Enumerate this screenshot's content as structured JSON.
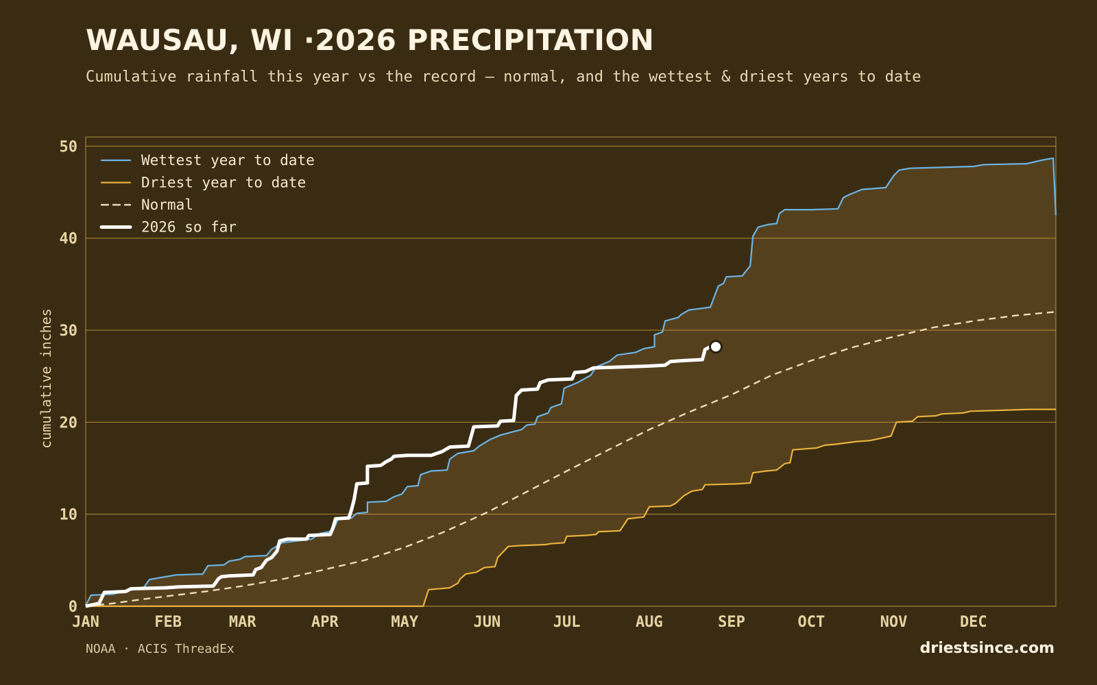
{
  "header": {
    "title": "WAUSAU, WI ·2026 PRECIPITATION",
    "subtitle": "Cumulative rainfall this year vs the record — normal, and the wettest & driest years to date"
  },
  "footer": {
    "source": "NOAA · ACIS ThreadEx",
    "brand": "driestsince.com"
  },
  "chart_data": {
    "type": "line",
    "title": "WAUSAU, WI ·2026 PRECIPITATION",
    "ylabel": "cumulative inches",
    "xlabel": "",
    "ylim": [
      0,
      51
    ],
    "xlim_days": [
      0,
      365
    ],
    "yticks": [
      0,
      10,
      20,
      30,
      40,
      50
    ],
    "months": [
      {
        "label": "JAN",
        "day": 0
      },
      {
        "label": "FEB",
        "day": 31
      },
      {
        "label": "MAR",
        "day": 59
      },
      {
        "label": "APR",
        "day": 90
      },
      {
        "label": "MAY",
        "day": 120
      },
      {
        "label": "JUN",
        "day": 151
      },
      {
        "label": "JUL",
        "day": 181
      },
      {
        "label": "AUG",
        "day": 212
      },
      {
        "label": "SEP",
        "day": 243
      },
      {
        "label": "OCT",
        "day": 273
      },
      {
        "label": "NOV",
        "day": 304
      },
      {
        "label": "DEC",
        "day": 334
      }
    ],
    "grid": true,
    "legend_position": "top-left",
    "colors": {
      "wettest": "#6cb4e4",
      "driest": "#e8b23c",
      "normal": "#ecdcb6",
      "current": "#ffffff",
      "band": "#56411f",
      "grid": "#c9a040",
      "axis_text": "#e6d3a3"
    },
    "series": [
      {
        "name": "Wettest year to date",
        "style": "solid",
        "points": [
          [
            0,
            0.1
          ],
          [
            2,
            1.2
          ],
          [
            10,
            1.3
          ],
          [
            14,
            1.6
          ],
          [
            18,
            1.8
          ],
          [
            22,
            2.1
          ],
          [
            24,
            2.9
          ],
          [
            30,
            3.2
          ],
          [
            34,
            3.4
          ],
          [
            44,
            3.5
          ],
          [
            46,
            4.4
          ],
          [
            52,
            4.5
          ],
          [
            54,
            4.9
          ],
          [
            58,
            5.1
          ],
          [
            60,
            5.4
          ],
          [
            68,
            5.5
          ],
          [
            70,
            6.2
          ],
          [
            74,
            6.9
          ],
          [
            85,
            7.3
          ],
          [
            88,
            7.9
          ],
          [
            93,
            8.2
          ],
          [
            95,
            9.5
          ],
          [
            100,
            9.6
          ],
          [
            102,
            10.1
          ],
          [
            106,
            10.2
          ],
          [
            106,
            11.3
          ],
          [
            113,
            11.4
          ],
          [
            116,
            11.9
          ],
          [
            119,
            12.2
          ],
          [
            121,
            13.0
          ],
          [
            125,
            13.1
          ],
          [
            126,
            14.3
          ],
          [
            130,
            14.7
          ],
          [
            136,
            14.8
          ],
          [
            137,
            16.0
          ],
          [
            140,
            16.6
          ],
          [
            146,
            16.9
          ],
          [
            148,
            17.4
          ],
          [
            152,
            18.1
          ],
          [
            156,
            18.6
          ],
          [
            160,
            18.9
          ],
          [
            164,
            19.2
          ],
          [
            166,
            19.7
          ],
          [
            169,
            19.8
          ],
          [
            170,
            20.6
          ],
          [
            174,
            21.0
          ],
          [
            175,
            21.6
          ],
          [
            179,
            22.0
          ],
          [
            180,
            23.7
          ],
          [
            185,
            24.3
          ],
          [
            190,
            25.1
          ],
          [
            192,
            26.0
          ],
          [
            197,
            26.6
          ],
          [
            200,
            27.3
          ],
          [
            207,
            27.6
          ],
          [
            210,
            28.0
          ],
          [
            214,
            28.2
          ],
          [
            214,
            29.5
          ],
          [
            217,
            29.8
          ],
          [
            218,
            31.0
          ],
          [
            223,
            31.4
          ],
          [
            224,
            31.7
          ],
          [
            227,
            32.2
          ],
          [
            235,
            32.5
          ],
          [
            238,
            34.8
          ],
          [
            240,
            35.1
          ],
          [
            241,
            35.8
          ],
          [
            247,
            35.9
          ],
          [
            250,
            37.0
          ],
          [
            251,
            40.2
          ],
          [
            253,
            41.2
          ],
          [
            257,
            41.5
          ],
          [
            260,
            41.6
          ],
          [
            261,
            42.7
          ],
          [
            263,
            43.1
          ],
          [
            273,
            43.1
          ],
          [
            283,
            43.2
          ],
          [
            285,
            44.4
          ],
          [
            287,
            44.7
          ],
          [
            292,
            45.3
          ],
          [
            301,
            45.5
          ],
          [
            304,
            46.8
          ],
          [
            306,
            47.4
          ],
          [
            310,
            47.6
          ],
          [
            334,
            47.8
          ],
          [
            338,
            48.0
          ],
          [
            354,
            48.1
          ],
          [
            360,
            48.5
          ],
          [
            364,
            48.7
          ],
          [
            365,
            42.5
          ]
        ]
      },
      {
        "name": "Driest year to date",
        "style": "solid",
        "points": [
          [
            0,
            0
          ],
          [
            127,
            0
          ],
          [
            129,
            1.8
          ],
          [
            137,
            2.0
          ],
          [
            140,
            2.5
          ],
          [
            141,
            3.0
          ],
          [
            143,
            3.5
          ],
          [
            147,
            3.7
          ],
          [
            150,
            4.2
          ],
          [
            154,
            4.3
          ],
          [
            155,
            5.3
          ],
          [
            157,
            5.9
          ],
          [
            159,
            6.5
          ],
          [
            164,
            6.6
          ],
          [
            173,
            6.7
          ],
          [
            175,
            6.8
          ],
          [
            180,
            6.9
          ],
          [
            181,
            7.6
          ],
          [
            188,
            7.7
          ],
          [
            192,
            7.8
          ],
          [
            193,
            8.1
          ],
          [
            201,
            8.2
          ],
          [
            204,
            9.5
          ],
          [
            210,
            9.7
          ],
          [
            212,
            10.8
          ],
          [
            220,
            10.9
          ],
          [
            222,
            11.2
          ],
          [
            225,
            12.0
          ],
          [
            228,
            12.5
          ],
          [
            232,
            12.7
          ],
          [
            233,
            13.2
          ],
          [
            245,
            13.3
          ],
          [
            250,
            13.4
          ],
          [
            251,
            14.5
          ],
          [
            256,
            14.7
          ],
          [
            260,
            14.8
          ],
          [
            263,
            15.5
          ],
          [
            265,
            15.6
          ],
          [
            266,
            17.0
          ],
          [
            275,
            17.2
          ],
          [
            278,
            17.5
          ],
          [
            282,
            17.6
          ],
          [
            290,
            17.9
          ],
          [
            295,
            18.0
          ],
          [
            300,
            18.3
          ],
          [
            303,
            18.5
          ],
          [
            305,
            20.0
          ],
          [
            311,
            20.1
          ],
          [
            313,
            20.6
          ],
          [
            320,
            20.7
          ],
          [
            322,
            20.9
          ],
          [
            330,
            21.0
          ],
          [
            333,
            21.2
          ],
          [
            345,
            21.3
          ],
          [
            355,
            21.4
          ],
          [
            365,
            21.4
          ]
        ]
      },
      {
        "name": "Normal",
        "style": "dashed",
        "points": [
          [
            0,
            0
          ],
          [
            10,
            0.3
          ],
          [
            20,
            0.7
          ],
          [
            31,
            1.1
          ],
          [
            45,
            1.6
          ],
          [
            59,
            2.2
          ],
          [
            75,
            3.0
          ],
          [
            90,
            4.0
          ],
          [
            105,
            5.0
          ],
          [
            120,
            6.4
          ],
          [
            135,
            8.1
          ],
          [
            151,
            10.2
          ],
          [
            165,
            12.3
          ],
          [
            181,
            14.7
          ],
          [
            196,
            16.9
          ],
          [
            212,
            19.2
          ],
          [
            227,
            21.1
          ],
          [
            243,
            23.0
          ],
          [
            258,
            25.1
          ],
          [
            273,
            26.7
          ],
          [
            288,
            28.1
          ],
          [
            304,
            29.3
          ],
          [
            319,
            30.3
          ],
          [
            334,
            31.0
          ],
          [
            350,
            31.6
          ],
          [
            365,
            32.0
          ]
        ]
      },
      {
        "name": "2026 so far",
        "style": "bold",
        "points": [
          [
            0,
            0
          ],
          [
            5,
            0.3
          ],
          [
            7,
            1.5
          ],
          [
            15,
            1.6
          ],
          [
            17,
            1.9
          ],
          [
            30,
            2.0
          ],
          [
            35,
            2.1
          ],
          [
            48,
            2.2
          ],
          [
            50,
            3.0
          ],
          [
            51,
            3.2
          ],
          [
            54,
            3.3
          ],
          [
            63,
            3.4
          ],
          [
            64,
            4.0
          ],
          [
            66,
            4.2
          ],
          [
            68,
            5.0
          ],
          [
            70,
            5.3
          ],
          [
            72,
            6.0
          ],
          [
            73,
            7.1
          ],
          [
            76,
            7.3
          ],
          [
            83,
            7.3
          ],
          [
            84,
            7.7
          ],
          [
            92,
            7.8
          ],
          [
            93,
            8.5
          ],
          [
            94,
            9.5
          ],
          [
            99,
            9.6
          ],
          [
            100,
            10.5
          ],
          [
            101,
            11.6
          ],
          [
            102,
            13.3
          ],
          [
            106,
            13.4
          ],
          [
            106,
            15.2
          ],
          [
            111,
            15.3
          ],
          [
            113,
            15.7
          ],
          [
            115,
            16.0
          ],
          [
            116,
            16.3
          ],
          [
            121,
            16.4
          ],
          [
            130,
            16.4
          ],
          [
            134,
            16.8
          ],
          [
            137,
            17.3
          ],
          [
            144,
            17.4
          ],
          [
            146,
            19.5
          ],
          [
            155,
            19.6
          ],
          [
            156,
            20.1
          ],
          [
            161,
            20.2
          ],
          [
            162,
            22.9
          ],
          [
            164,
            23.5
          ],
          [
            170,
            23.6
          ],
          [
            171,
            24.3
          ],
          [
            174,
            24.6
          ],
          [
            183,
            24.7
          ],
          [
            184,
            25.4
          ],
          [
            188,
            25.5
          ],
          [
            191,
            25.9
          ],
          [
            212,
            26.1
          ],
          [
            218,
            26.2
          ],
          [
            220,
            26.6
          ],
          [
            225,
            26.7
          ],
          [
            232,
            26.8
          ],
          [
            233,
            27.9
          ],
          [
            235,
            28.2
          ]
        ]
      }
    ],
    "current_marker": {
      "day": 235,
      "value": 28.2
    }
  }
}
